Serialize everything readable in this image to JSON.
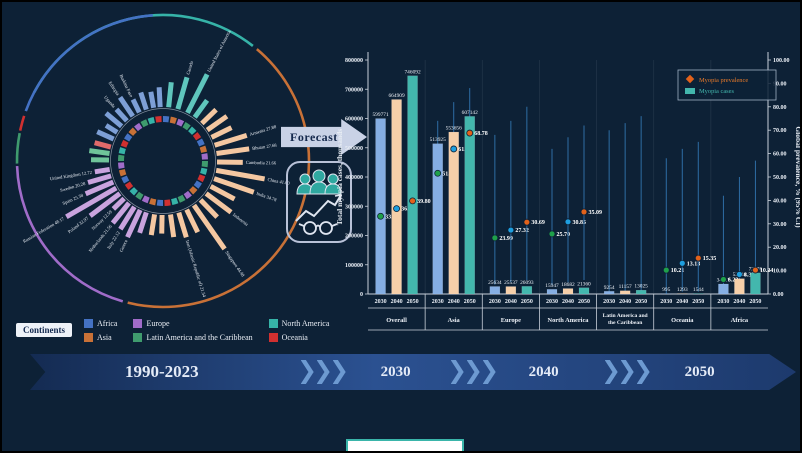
{
  "forecast": {
    "label": "Forecast"
  },
  "timeline": {
    "era": "1990-2023",
    "years": [
      "2030",
      "2040",
      "2050"
    ]
  },
  "continents_legend": {
    "title": "Continents",
    "items": [
      {
        "label": "Africa",
        "color": "#4472c4"
      },
      {
        "label": "Asia",
        "color": "#c87137"
      },
      {
        "label": "Europe",
        "color": "#a06cc9"
      },
      {
        "label": "Latin America and the Caribbean",
        "color": "#3f9b6e"
      },
      {
        "label": "North America",
        "color": "#36b3a8"
      },
      {
        "label": "Oceania",
        "color": "#d03030"
      }
    ]
  },
  "chart_data": [
    {
      "type": "bar",
      "title": "",
      "years": [
        "2030",
        "2040",
        "2050"
      ],
      "bar_colors": {
        "2030": "#85aee3",
        "2040": "#f6cfa9",
        "2050": "#43b7ad"
      },
      "dot_colors": {
        "2030": "#1fa04a",
        "2040": "#1e9fe0",
        "2050": "#e2621b"
      },
      "error_bar_color": "#2e6da4",
      "legend": {
        "prevalence": "Myopia prevalence",
        "cases": "Myopia cases"
      },
      "yaxis_left": {
        "title": "Total myopia cases, thousands",
        "ticks": [
          "0",
          "100000",
          "200000",
          "300000",
          "400000",
          "500000",
          "600000",
          "700000",
          "800000"
        ],
        "max": 800000
      },
      "yaxis_right": {
        "title": "Global prevalence, % (95% CI)",
        "ticks": [
          "0.00",
          "10.00",
          "20.00",
          "30.00",
          "40.00",
          "50.00",
          "60.00",
          "70.00",
          "80.00",
          "90.00",
          "100.00"
        ],
        "max": 100
      },
      "groups": [
        {
          "name_lines": [
            "Overall"
          ],
          "cases": [
            "599771",
            "664909",
            "746092"
          ],
          "prevalence": [
            "33.22",
            "36.49",
            "39.80"
          ],
          "ci": [
            [
              18,
              49
            ],
            [
              20,
              53
            ],
            [
              22,
              57
            ]
          ]
        },
        {
          "name_lines": [
            "Asia"
          ],
          "cases": [
            "513925",
            "553656",
            "607142"
          ],
          "prevalence": [
            "51.60",
            "61.99",
            "68.78"
          ],
          "ci": [
            [
              30,
              74
            ],
            [
              37,
              82
            ],
            [
              42,
              88
            ]
          ]
        },
        {
          "name_lines": [
            "Europe"
          ],
          "cases": [
            "25634",
            "25537",
            "26093"
          ],
          "prevalence": [
            "23.99",
            "27.32",
            "30.69"
          ],
          "ci": [
            [
              4,
              68
            ],
            [
              5,
              74
            ],
            [
              6,
              80
            ]
          ]
        },
        {
          "name_lines": [
            "North America"
          ],
          "cases": [
            "15947",
            "18682",
            "21360"
          ],
          "prevalence": [
            "25.70",
            "30.85",
            "35.09"
          ],
          "ci": [
            [
              4,
              62
            ],
            [
              5,
              67
            ],
            [
              6,
              72
            ]
          ]
        },
        {
          "name_lines": [
            "Latin America and",
            "the Caribbean"
          ],
          "cases": [
            "9254",
            "11157",
            "13025"
          ],
          "prevalence": [
            null,
            null,
            null
          ],
          "ci": [
            [
              0,
              70
            ],
            [
              0,
              73
            ],
            [
              0,
              76
            ]
          ]
        },
        {
          "name_lines": [
            "Oceania"
          ],
          "cases": [
            "995",
            "1293",
            "1544"
          ],
          "prevalence": [
            "10.21",
            "13.13",
            "15.35"
          ],
          "ci": [
            [
              0,
              58
            ],
            [
              1,
              62
            ],
            [
              1,
              65
            ]
          ]
        },
        {
          "name_lines": [
            "Africa"
          ],
          "cases": [
            "34217",
            "52384",
            "72176"
          ],
          "prevalence": [
            "6.23",
            "8.38",
            "10.24"
          ],
          "ci": [
            [
              0,
              42
            ],
            [
              1,
              50
            ],
            [
              1,
              57
            ]
          ]
        }
      ]
    },
    {
      "type": "radial-bar",
      "period": "1990-2023",
      "continent_arc_colors": {
        "AF": "#4472c4",
        "AS": "#c87137",
        "EU": "#a06cc9",
        "LA": "#3f9b6e",
        "NA": "#36b3a8",
        "OC": "#d03030"
      },
      "bar_colors": {
        "AF": "#7d9fd6",
        "AS": "#f4c7a1",
        "EU": "#c9a3de",
        "LA": "#6fc49a",
        "NA": "#5fc6bd",
        "OC": "#e06a6a"
      },
      "arcs": [
        {
          "c": "NA",
          "s": -62,
          "e": 38
        },
        {
          "c": "AS",
          "s": 40,
          "e": 194
        },
        {
          "c": "EU",
          "s": 196,
          "e": 268
        },
        {
          "c": "LA",
          "s": 269,
          "e": 281
        },
        {
          "c": "OC",
          "s": 282,
          "e": 288
        },
        {
          "c": "AF",
          "s": 290,
          "e": 356
        }
      ],
      "bars": [
        {
          "a": 6,
          "c": "NA",
          "v": 0.42,
          "t": ""
        },
        {
          "a": 16,
          "c": "NA",
          "v": 0.55,
          "t": "Canada"
        },
        {
          "a": 27,
          "c": "NA",
          "v": 0.72,
          "t": "United States of America"
        },
        {
          "a": 36,
          "c": "NA",
          "v": 0.35,
          "t": ""
        },
        {
          "a": 46,
          "c": "AS",
          "v": 0.33,
          "t": ""
        },
        {
          "a": 55,
          "c": "AS",
          "v": 0.4,
          "t": ""
        },
        {
          "a": 64,
          "c": "AS",
          "v": 0.37,
          "t": ""
        },
        {
          "a": 73,
          "c": "AS",
          "v": 0.56,
          "t": "Armenia 27.88"
        },
        {
          "a": 82,
          "c": "AS",
          "v": 0.55,
          "t": "Bhutan 27.68"
        },
        {
          "a": 91,
          "c": "AS",
          "v": 0.43,
          "t": "Cambodia 21.66"
        },
        {
          "a": 100,
          "c": "AS",
          "v": 0.82,
          "t": "China 41.00"
        },
        {
          "a": 109,
          "c": "AS",
          "v": 0.7,
          "t": "India 34.78"
        },
        {
          "a": 118,
          "c": "AS",
          "v": 0.45,
          "t": ""
        },
        {
          "a": 127,
          "c": "AS",
          "v": 0.52,
          "t": "Indonesia"
        },
        {
          "a": 136,
          "c": "AS",
          "v": 0.4,
          "t": ""
        },
        {
          "a": 145,
          "c": "AS",
          "v": 0.89,
          "t": "Singapore 44.48"
        },
        {
          "a": 154,
          "c": "AS",
          "v": 0.42,
          "t": ""
        },
        {
          "a": 163,
          "c": "AS",
          "v": 0.43,
          "t": "Iran (Islamic Republic of) 21.54"
        },
        {
          "a": 172,
          "c": "AS",
          "v": 0.38,
          "t": ""
        },
        {
          "a": 181,
          "c": "AS",
          "v": 0.31,
          "t": ""
        },
        {
          "a": 189,
          "c": "AS",
          "v": 0.35,
          "t": ""
        },
        {
          "a": 198,
          "c": "EU",
          "v": 0.36,
          "t": ""
        },
        {
          "a": 205,
          "c": "EU",
          "v": 0.5,
          "t": "Greece"
        },
        {
          "a": 212,
          "c": "EU",
          "v": 0.44,
          "t": "Italy 22.12"
        },
        {
          "a": 219,
          "c": "EU",
          "v": 0.43,
          "t": "Netherlands 21.56"
        },
        {
          "a": 226,
          "c": "EU",
          "v": 0.25,
          "t": "Norway 12.59"
        },
        {
          "a": 233,
          "c": "EU",
          "v": 0.62,
          "t": "Poland 32.97"
        },
        {
          "a": 240,
          "c": "EU",
          "v": 0.96,
          "t": "Russian Federation 48.17"
        },
        {
          "a": 247,
          "c": "EU",
          "v": 0.5,
          "t": "Spain 25.38"
        },
        {
          "a": 254,
          "c": "EU",
          "v": 0.4,
          "t": "Sweden 20.28"
        },
        {
          "a": 261,
          "c": "EU",
          "v": 0.25,
          "t": "United Kingdom 12.72"
        },
        {
          "a": 271,
          "c": "LA",
          "v": 0.3,
          "t": ""
        },
        {
          "a": 278,
          "c": "LA",
          "v": 0.34,
          "t": ""
        },
        {
          "a": 285,
          "c": "OC",
          "v": 0.28,
          "t": ""
        },
        {
          "a": 294,
          "c": "AF",
          "v": 0.3,
          "t": ""
        },
        {
          "a": 302,
          "c": "AF",
          "v": 0.22,
          "t": ""
        },
        {
          "a": 310,
          "c": "AF",
          "v": 0.34,
          "t": ""
        },
        {
          "a": 318,
          "c": "AF",
          "v": 0.26,
          "t": "Uganda"
        },
        {
          "a": 326,
          "c": "AF",
          "v": 0.38,
          "t": "Ethiopia"
        },
        {
          "a": 334,
          "c": "AF",
          "v": 0.24,
          "t": "Burkina Faso"
        },
        {
          "a": 342,
          "c": "AF",
          "v": 0.3,
          "t": ""
        },
        {
          "a": 350,
          "c": "AF",
          "v": 0.27,
          "t": ""
        },
        {
          "a": 357,
          "c": "AF",
          "v": 0.33,
          "t": ""
        }
      ]
    }
  ]
}
